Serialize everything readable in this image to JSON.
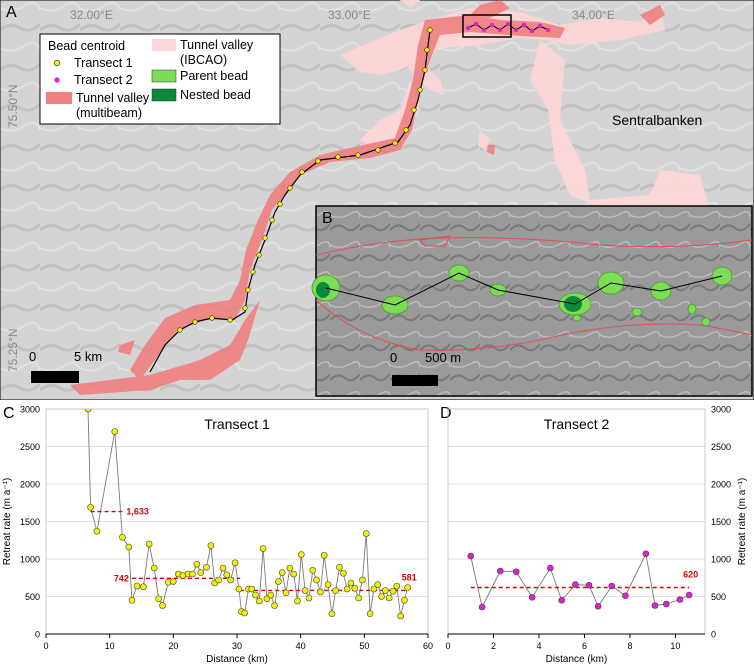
{
  "panels": {
    "a": "A",
    "b": "B",
    "c": "C",
    "d": "D"
  },
  "map": {
    "lon_labels": [
      "32.00°E",
      "33.00°E",
      "34.00°E"
    ],
    "lat_labels": [
      "75.50°N",
      "75.25°N"
    ],
    "place_label": "Sentralbanken",
    "scale_a": {
      "zero": "0",
      "length": "5 km"
    },
    "scale_b": {
      "zero": "0",
      "length": "500 m"
    },
    "legend": {
      "heading": "Bead centroid",
      "transect1": "Transect 1",
      "transect2": "Transect 2",
      "tv_multibeam": [
        "Tunnel valley",
        "(multibeam)"
      ],
      "tv_ibcao": [
        "Tunnel valley",
        "(IBCAO)"
      ],
      "parent_bead": "Parent bead",
      "nested_bead": "Nested bead"
    },
    "colors": {
      "transect1_point": "#f2f200",
      "transect2_point": "#e020d0",
      "tv_multibeam": "#f08080",
      "tv_ibcao": "#fcd6d6",
      "parent_bead": "#7ddc55",
      "nested_bead": "#0a8a3a",
      "mean_line": "#e00000"
    }
  },
  "chart_data": [
    {
      "type": "scatter",
      "title": "Transect 1",
      "xlabel": "Distance (km)",
      "ylabel": "Retreat rate (m a⁻¹)",
      "xlim": [
        0,
        60
      ],
      "ylim": [
        0,
        3000
      ],
      "xticks": [
        0,
        10,
        20,
        30,
        40,
        50,
        60
      ],
      "yticks": [
        0,
        500,
        1000,
        1500,
        2000,
        2500,
        3000
      ],
      "points": [
        [
          6.6,
          3000
        ],
        [
          7,
          1690
        ],
        [
          8,
          1370
        ],
        [
          10.8,
          2700
        ],
        [
          12,
          1290
        ],
        [
          13,
          1160
        ],
        [
          13.5,
          450
        ],
        [
          14.3,
          640
        ],
        [
          15.3,
          630
        ],
        [
          16.2,
          1200
        ],
        [
          17,
          880
        ],
        [
          17.7,
          470
        ],
        [
          18.3,
          380
        ],
        [
          19.2,
          690
        ],
        [
          20,
          700
        ],
        [
          20.8,
          800
        ],
        [
          21.5,
          780
        ],
        [
          22.3,
          800
        ],
        [
          23,
          800
        ],
        [
          23.7,
          930
        ],
        [
          24.3,
          820
        ],
        [
          25.2,
          890
        ],
        [
          25.9,
          1180
        ],
        [
          26.5,
          680
        ],
        [
          27.1,
          720
        ],
        [
          27.8,
          880
        ],
        [
          28.4,
          790
        ],
        [
          29,
          720
        ],
        [
          29.7,
          950
        ],
        [
          30.3,
          600
        ],
        [
          30.7,
          300
        ],
        [
          31.2,
          280
        ],
        [
          31.8,
          600
        ],
        [
          32.3,
          600
        ],
        [
          32.9,
          520
        ],
        [
          33.5,
          440
        ],
        [
          34.1,
          1140
        ],
        [
          34.7,
          470
        ],
        [
          35.3,
          520
        ],
        [
          35.9,
          380
        ],
        [
          36.5,
          700
        ],
        [
          37.1,
          820
        ],
        [
          37.7,
          550
        ],
        [
          38.3,
          880
        ],
        [
          38.9,
          800
        ],
        [
          39.5,
          440
        ],
        [
          40.1,
          1060
        ],
        [
          40.7,
          580
        ],
        [
          41.3,
          480
        ],
        [
          41.9,
          850
        ],
        [
          42.5,
          720
        ],
        [
          43.1,
          560
        ],
        [
          43.7,
          1050
        ],
        [
          44.3,
          660
        ],
        [
          44.9,
          270
        ],
        [
          45.5,
          580
        ],
        [
          46.1,
          890
        ],
        [
          46.7,
          810
        ],
        [
          47.3,
          600
        ],
        [
          47.9,
          680
        ],
        [
          48.5,
          610
        ],
        [
          49.1,
          480
        ],
        [
          49.7,
          720
        ],
        [
          50.3,
          1340
        ],
        [
          50.9,
          270
        ],
        [
          51.5,
          600
        ],
        [
          52.1,
          660
        ],
        [
          52.7,
          500
        ],
        [
          53.3,
          580
        ],
        [
          53.9,
          480
        ],
        [
          54.5,
          570
        ],
        [
          55.1,
          640
        ],
        [
          55.7,
          240
        ],
        [
          56.3,
          450
        ],
        [
          56.8,
          620
        ]
      ],
      "means": [
        {
          "label": "1,633",
          "x_start": 7,
          "x_end": 12,
          "y": 1633
        },
        {
          "label": "742",
          "x_start": 13.5,
          "x_end": 30.5,
          "y": 742
        },
        {
          "label": "581",
          "x_start": 30.5,
          "x_end": 56.8,
          "y": 581
        }
      ]
    },
    {
      "type": "scatter",
      "title": "Transect 2",
      "xlabel": "Distance (km)",
      "ylabel": "Retreat rate (m a⁻¹)",
      "xlim": [
        0,
        11.3
      ],
      "ylim": [
        0,
        3000
      ],
      "xticks": [
        0,
        2,
        4,
        6,
        8,
        10
      ],
      "yticks": [
        0,
        500,
        1000,
        1500,
        2000,
        2500,
        3000
      ],
      "points": [
        [
          1.0,
          1040
        ],
        [
          1.5,
          360
        ],
        [
          2.3,
          840
        ],
        [
          3.0,
          830
        ],
        [
          3.7,
          490
        ],
        [
          4.5,
          880
        ],
        [
          5.0,
          450
        ],
        [
          5.6,
          660
        ],
        [
          6.2,
          650
        ],
        [
          6.6,
          370
        ],
        [
          7.2,
          640
        ],
        [
          7.8,
          510
        ],
        [
          8.7,
          1070
        ],
        [
          9.1,
          380
        ],
        [
          9.6,
          400
        ],
        [
          10.2,
          460
        ],
        [
          10.6,
          520
        ]
      ],
      "means": [
        {
          "label": "620",
          "x_start": 1.0,
          "x_end": 10.6,
          "y": 620
        }
      ]
    }
  ]
}
